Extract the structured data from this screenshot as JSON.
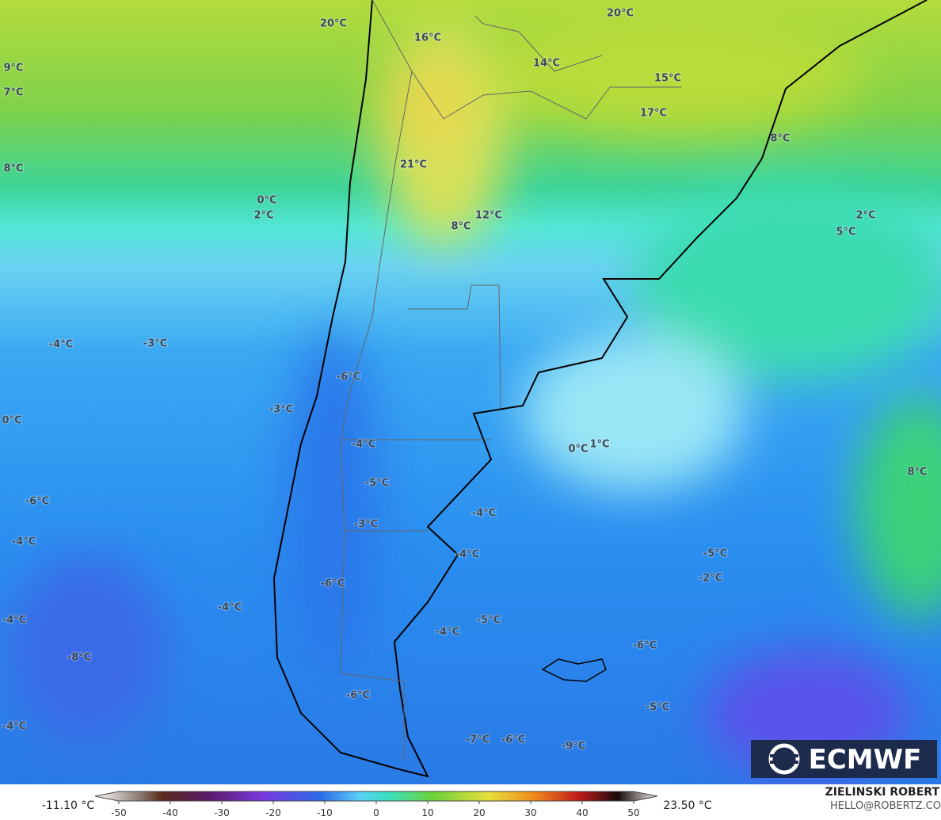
{
  "map": {
    "temperature_labels": [
      "20°C",
      "16°C",
      "14°C",
      "20°C",
      "15°C",
      "17°C",
      "9°C",
      "7°C",
      "8°C",
      "21°C",
      "0°C",
      "2°C",
      "12°C",
      "8°C",
      "8°C",
      "2°C",
      "5°C",
      "-4°C",
      "-3°C",
      "-6°C",
      "-3°C",
      "0°C",
      "-4°C",
      "0°C",
      "1°C",
      "-5°C",
      "-6°C",
      "-3°C",
      "-4°C",
      "-4°C",
      "-4°C",
      "8°C",
      "-5°C",
      "-2°C",
      "-6°C",
      "-4°C",
      "-4°C",
      "-5°C",
      "-4°C",
      "-8°C",
      "-6°C",
      "-5°C",
      "-6°C",
      "-4°C",
      "-7°C",
      "-6°C",
      "-9°C"
    ],
    "logo": "ECMWF",
    "author": "ZIELINSKI ROBERT",
    "contact": "HELLO@ROBERTZ.CO"
  },
  "colorbar": {
    "min_label": "-11.10 °C",
    "max_label": "23.50 °C",
    "range": [
      -50,
      50
    ],
    "ticks": [
      -50,
      -40,
      -30,
      -20,
      -10,
      0,
      10,
      20,
      30,
      40,
      50
    ]
  }
}
